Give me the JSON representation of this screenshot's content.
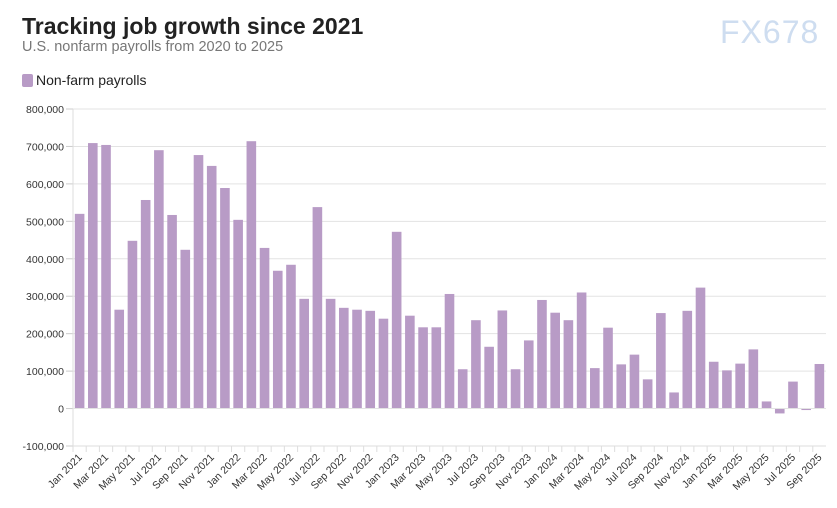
{
  "chart_data": {
    "type": "bar",
    "title": "Tracking job growth since 2021",
    "subtitle": "U.S. nonfarm payrolls from 2020 to 2025",
    "xlabel": "",
    "ylabel": "",
    "ylim": [
      -100000,
      800000
    ],
    "yticks": [
      -100000,
      0,
      100000,
      200000,
      300000,
      400000,
      500000,
      600000,
      700000,
      800000
    ],
    "grid": true,
    "legend_placement": "top-left",
    "bar_color": "#b89bc6",
    "series": [
      {
        "name": "Non-farm payrolls",
        "values": [
          520000,
          709000,
          704000,
          264000,
          448000,
          557000,
          690000,
          517000,
          424000,
          677000,
          648000,
          589000,
          504000,
          714000,
          429000,
          368000,
          384000,
          293000,
          538000,
          293000,
          269000,
          264000,
          261000,
          240000,
          472000,
          248000,
          217000,
          217000,
          306000,
          105000,
          236000,
          165000,
          262000,
          105000,
          182000,
          290000,
          256000,
          236000,
          310000,
          108000,
          216000,
          118000,
          144000,
          78000,
          255000,
          43000,
          261000,
          323000,
          125000,
          102000,
          120000,
          158000,
          19000,
          -13000,
          72000,
          -4000,
          119000
        ]
      }
    ],
    "categories": [
      "Jan 2021",
      "Feb 2021",
      "Mar 2021",
      "Apr 2021",
      "May 2021",
      "Jun 2021",
      "Jul 2021",
      "Aug 2021",
      "Sep 2021",
      "Oct 2021",
      "Nov 2021",
      "Dec 2021",
      "Jan 2022",
      "Feb 2022",
      "Mar 2022",
      "Apr 2022",
      "May 2022",
      "Jun 2022",
      "Jul 2022",
      "Aug 2022",
      "Sep 2022",
      "Oct 2022",
      "Nov 2022",
      "Dec 2022",
      "Jan 2023",
      "Feb 2023",
      "Mar 2023",
      "Apr 2023",
      "May 2023",
      "Jun 2023",
      "Jul 2023",
      "Aug 2023",
      "Sep 2023",
      "Oct 2023",
      "Nov 2023",
      "Dec 2023",
      "Jan 2024",
      "Feb 2024",
      "Mar 2024",
      "Apr 2024",
      "May 2024",
      "Jun 2024",
      "Jul 2024",
      "Aug 2024",
      "Sep 2024",
      "Oct 2024",
      "Nov 2024",
      "Dec 2024",
      "Jan 2025",
      "Feb 2025",
      "Mar 2025",
      "Apr 2025",
      "May 2025",
      "Jun 2025",
      "Jul 2025",
      "Aug 2025",
      "Sep 2025"
    ]
  },
  "watermark": "FX678"
}
